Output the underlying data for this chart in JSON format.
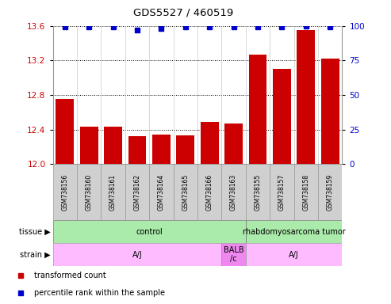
{
  "title": "GDS5527 / 460519",
  "samples": [
    "GSM738156",
    "GSM738160",
    "GSM738161",
    "GSM738162",
    "GSM738164",
    "GSM738165",
    "GSM738166",
    "GSM738163",
    "GSM738155",
    "GSM738157",
    "GSM738158",
    "GSM738159"
  ],
  "bar_values": [
    12.75,
    12.43,
    12.43,
    12.32,
    12.34,
    12.33,
    12.49,
    12.47,
    13.27,
    13.1,
    13.55,
    13.22
  ],
  "percentile_values": [
    99,
    99,
    99,
    97,
    98,
    99,
    99,
    99,
    99,
    99,
    100,
    99
  ],
  "ylim": [
    12.0,
    13.6
  ],
  "yticks": [
    12.0,
    12.4,
    12.8,
    13.2,
    13.6
  ],
  "right_yticks": [
    0,
    25,
    50,
    75,
    100
  ],
  "right_ylim": [
    0,
    100
  ],
  "bar_color": "#cc0000",
  "dot_color": "#0000cc",
  "tissue_labels": [
    {
      "text": "control",
      "start": 0,
      "end": 7,
      "color": "#aaeaaa"
    },
    {
      "text": "rhabdomyosarcoma tumor",
      "start": 8,
      "end": 11,
      "color": "#aaeaaa"
    }
  ],
  "strain_labels": [
    {
      "text": "A/J",
      "start": 0,
      "end": 6,
      "color": "#ffbbff"
    },
    {
      "text": "BALB\n/c",
      "start": 7,
      "end": 7,
      "color": "#ee88ee"
    },
    {
      "text": "A/J",
      "start": 8,
      "end": 11,
      "color": "#ffbbff"
    }
  ],
  "legend_items": [
    {
      "color": "#cc0000",
      "label": "transformed count"
    },
    {
      "color": "#0000cc",
      "label": "percentile rank within the sample"
    }
  ],
  "tick_label_color_left": "#cc0000",
  "tick_label_color_right": "#0000cc",
  "bar_width": 0.75,
  "samplebox_color": "#d0d0d0",
  "samplebox_edge": "#999999",
  "dot_size": 4.5
}
